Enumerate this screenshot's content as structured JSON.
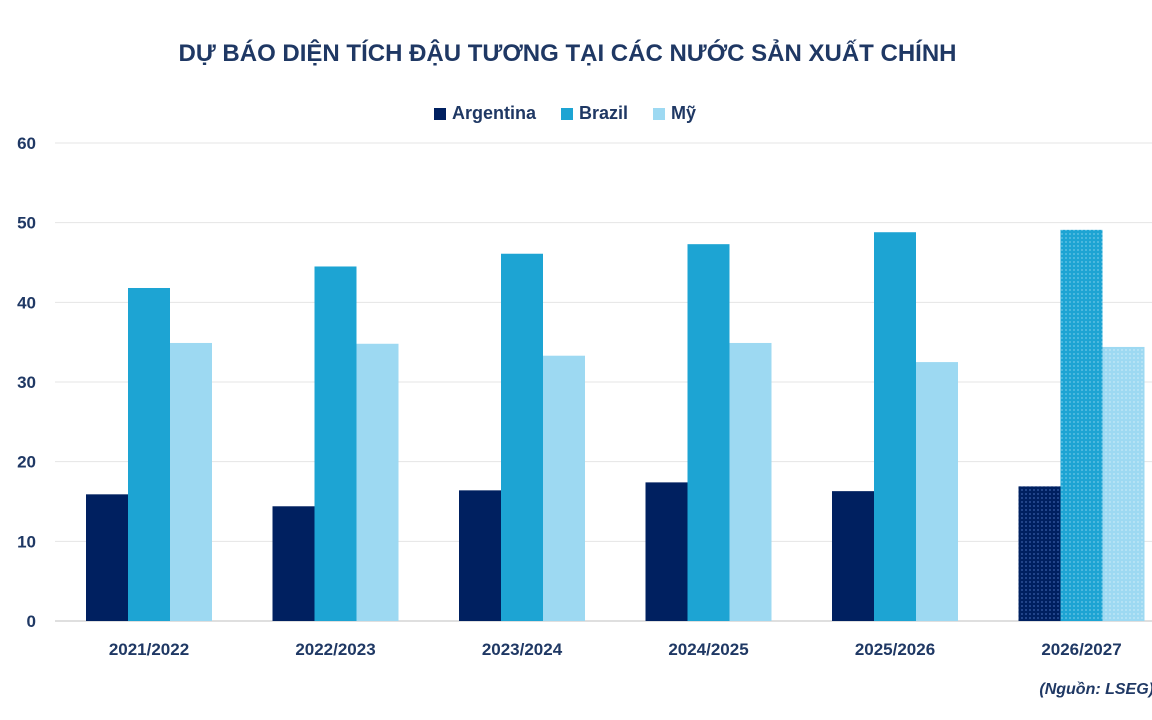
{
  "chart_data": {
    "type": "bar",
    "title": "DỰ BÁO DIỆN TÍCH ĐẬU TƯƠNG TẠI CÁC NƯỚC SẢN XUẤT CHÍNH",
    "categories": [
      "2021/2022",
      "2022/2023",
      "2023/2024",
      "2024/2025",
      "2025/2026",
      "2026/2027"
    ],
    "series": [
      {
        "name": "Argentina",
        "color": "#002060",
        "values": [
          15.9,
          14.4,
          16.4,
          17.4,
          16.3,
          16.9
        ]
      },
      {
        "name": "Brazil",
        "color": "#1da4d3",
        "values": [
          41.8,
          44.5,
          46.1,
          47.3,
          48.8,
          49.1
        ]
      },
      {
        "name": "Mỹ",
        "color": "#9dd9f2",
        "values": [
          34.9,
          34.8,
          33.3,
          34.9,
          32.5,
          34.4
        ]
      }
    ],
    "ylim": [
      0,
      60
    ],
    "yticks": [
      0,
      10,
      20,
      30,
      40,
      50,
      60
    ],
    "grid": true,
    "legend_position": "top-center",
    "forecast_pattern_last_category": true,
    "source": "(Nguồn: LSEG)"
  }
}
